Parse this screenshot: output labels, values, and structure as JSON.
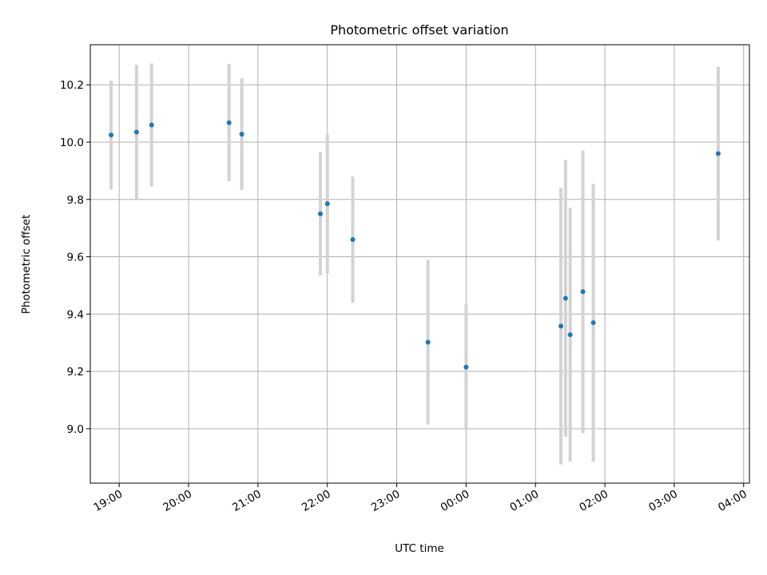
{
  "chart_data": {
    "type": "scatter",
    "title": "Photometric offset variation",
    "xlabel": "UTC time",
    "ylabel": "Photometric offset",
    "grid": true,
    "x_axis": {
      "kind": "time",
      "range": [
        "18:35",
        "04:05"
      ],
      "tick_labels": [
        "19:00",
        "20:00",
        "21:00",
        "22:00",
        "23:00",
        "00:00",
        "01:00",
        "02:00",
        "03:00",
        "04:00"
      ]
    },
    "y_axis": {
      "range": [
        8.81,
        10.34
      ],
      "ticks": [
        9.0,
        9.2,
        9.4,
        9.6,
        9.8,
        10.0,
        10.2
      ],
      "tick_labels": [
        "9.0",
        "9.2",
        "9.4",
        "9.6",
        "9.8",
        "10.0",
        "10.2"
      ]
    },
    "series": [
      {
        "marker_color": "#1f77b4",
        "errorbar_color": "#d3d3d3",
        "points": [
          {
            "x": "18:53",
            "y": 10.025,
            "err": 0.19
          },
          {
            "x": "19:15",
            "y": 10.035,
            "err": 0.235
          },
          {
            "x": "19:28",
            "y": 10.06,
            "err": 0.215
          },
          {
            "x": "20:35",
            "y": 10.068,
            "err": 0.205
          },
          {
            "x": "20:46",
            "y": 10.028,
            "err": 0.195
          },
          {
            "x": "21:54",
            "y": 9.75,
            "err": 0.215
          },
          {
            "x": "22:00",
            "y": 9.785,
            "err": 0.243
          },
          {
            "x": "22:22",
            "y": 9.66,
            "err": 0.22
          },
          {
            "x": "23:27",
            "y": 9.302,
            "err": 0.287
          },
          {
            "x": "00:00",
            "y": 9.215,
            "err": 0.22
          },
          {
            "x": "01:22",
            "y": 9.358,
            "err": 0.483
          },
          {
            "x": "01:26",
            "y": 9.455,
            "err": 0.483
          },
          {
            "x": "01:30",
            "y": 9.328,
            "err": 0.443
          },
          {
            "x": "01:41",
            "y": 9.478,
            "err": 0.493
          },
          {
            "x": "01:50",
            "y": 9.37,
            "err": 0.485
          },
          {
            "x": "03:38",
            "y": 9.96,
            "err": 0.303
          }
        ]
      }
    ]
  }
}
